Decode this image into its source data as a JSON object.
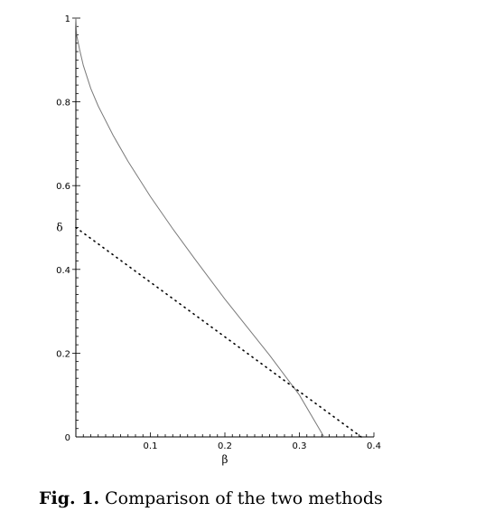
{
  "chart_data": {
    "type": "line",
    "xlabel": "β",
    "ylabel": "δ",
    "xlim": [
      0,
      0.4
    ],
    "ylim": [
      0,
      1
    ],
    "x_ticks": [
      {
        "value": 0.1,
        "label": "0.1"
      },
      {
        "value": 0.2,
        "label": "0.2"
      },
      {
        "value": 0.3,
        "label": "0.3"
      },
      {
        "value": 0.4,
        "label": "0.4"
      }
    ],
    "y_ticks": [
      {
        "value": 0,
        "label": "0"
      },
      {
        "value": 0.2,
        "label": "0.2"
      },
      {
        "value": 0.4,
        "label": "0.4"
      },
      {
        "value": 0.6,
        "label": "0.6"
      },
      {
        "value": 0.8,
        "label": "0.8"
      },
      {
        "value": 1,
        "label": "1"
      }
    ],
    "grid": false,
    "series": [
      {
        "style": "solid",
        "color": "#7a7a7a",
        "x": [
          0,
          0.001,
          0.005,
          0.01,
          0.02,
          0.03,
          0.05,
          0.07,
          0.1,
          0.13,
          0.16,
          0.2,
          0.23,
          0.26,
          0.3,
          0.333
        ],
        "y": [
          1,
          0.96,
          0.925,
          0.887,
          0.832,
          0.79,
          0.72,
          0.658,
          0.574,
          0.497,
          0.424,
          0.329,
          0.262,
          0.195,
          0.1,
          0
        ]
      },
      {
        "style": "dotted",
        "color": "#000000",
        "x": [
          0,
          0.383
        ],
        "y": [
          0.5,
          0
        ]
      }
    ]
  },
  "caption": {
    "label": "Fig. 1.",
    "text": "Comparison of the two methods"
  }
}
